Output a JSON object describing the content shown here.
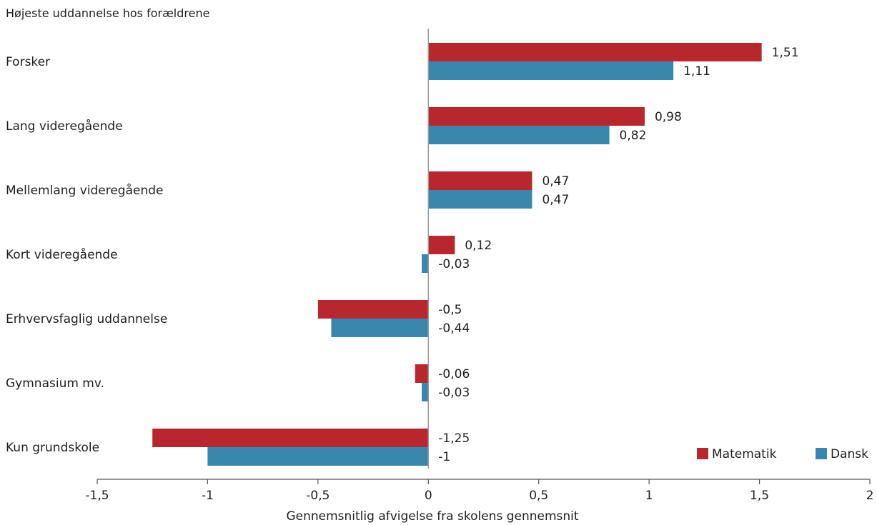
{
  "chart_data": {
    "type": "bar",
    "orientation": "horizontal",
    "title": "Højeste uddannelse hos forældrene",
    "xlabel": "Gennemsnitlig afvigelse fra skolens gennemsnit",
    "ylabel": "",
    "xlim": [
      -1.5,
      2
    ],
    "xticks": [
      -1.5,
      -1,
      -0.5,
      0,
      0.5,
      1,
      1.5,
      2
    ],
    "xtick_labels": [
      "-1,5",
      "-1",
      "-0,5",
      "0",
      "0,5",
      "1",
      "1,5",
      "2"
    ],
    "grid": false,
    "legend_position": "bottom-right",
    "categories": [
      "Forsker",
      "Lang videregående",
      "Mellemlang videregående",
      "Kort videregående",
      "Erhvervsfaglig uddannelse",
      "Gymnasium mv.",
      "Kun grundskole"
    ],
    "series": [
      {
        "name": "Matematik",
        "color": "#b8272e",
        "values": [
          1.51,
          0.98,
          0.47,
          0.12,
          -0.5,
          -0.06,
          -1.25
        ],
        "labels": [
          "1,51",
          "0,98",
          "0,47",
          "0,12",
          "-0,5",
          "-0,06",
          "-1,25"
        ]
      },
      {
        "name": "Dansk",
        "color": "#3a87ad",
        "values": [
          1.11,
          0.82,
          0.47,
          -0.03,
          -0.44,
          -0.03,
          -1
        ],
        "labels": [
          "1,11",
          "0,82",
          "0,47",
          "-0,03",
          "-0,44",
          "-0,03",
          "-1"
        ]
      }
    ]
  }
}
